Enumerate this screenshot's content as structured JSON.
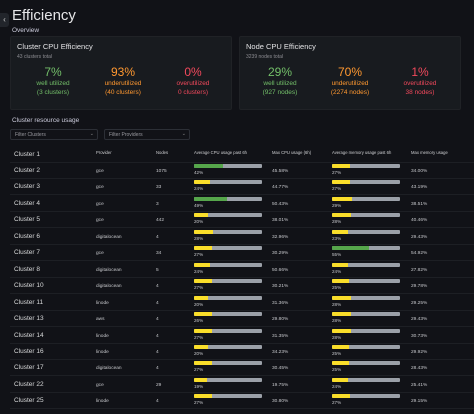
{
  "page": {
    "title": "Efficiency"
  },
  "overview_label": "Overview",
  "cpu_card": {
    "title": "Cluster CPU Efficiency",
    "subtitle": "43 clusters total",
    "stats": [
      {
        "value": "7%",
        "label": "well utilized",
        "detail": "(3 clusters)",
        "color": "#73bf69"
      },
      {
        "value": "93%",
        "label": "underutilized",
        "detail": "(40 clusters)",
        "color": "#ff9830"
      },
      {
        "value": "0%",
        "label": "overutilized",
        "detail": "0 clusters)",
        "color": "#f2495c"
      }
    ]
  },
  "node_card": {
    "title": "Node CPU Efficiency",
    "subtitle": "3239 nodes total",
    "stats": [
      {
        "value": "29%",
        "label": "well utilized",
        "detail": "(927 nodes)",
        "color": "#73bf69"
      },
      {
        "value": "70%",
        "label": "underutilized",
        "detail": "(2274 nodes)",
        "color": "#ff9830"
      },
      {
        "value": "1%",
        "label": "overutilized",
        "detail": "38 nodes)",
        "color": "#f2495c"
      }
    ]
  },
  "resource_label": "Cluster resource usage",
  "filters": {
    "clusters": "Filter Clusters",
    "providers": "Filter Providers"
  },
  "table": {
    "headers": [
      "Provider",
      "Nodes",
      "Average CPU usage past 6h",
      "Max CPU usage (6h)",
      "Average memory usage past 6h",
      "Max memory usage"
    ],
    "first_row": "Cluster 1",
    "rows": [
      {
        "name": "Cluster 2",
        "provider": "gce",
        "nodes": "1075",
        "cpu": 42,
        "cpu_label": "42%",
        "cpu_color": "#56a64b",
        "max_cpu": "45.58%",
        "mem": 27,
        "mem_label": "27%",
        "max_mem": "34.00%"
      },
      {
        "name": "Cluster 3",
        "provider": "gce",
        "nodes": "33",
        "cpu": 24,
        "cpu_label": "24%",
        "cpu_color": "#fade2a",
        "max_cpu": "44.77%",
        "mem": 27,
        "mem_label": "27%",
        "max_mem": "43.19%"
      },
      {
        "name": "Cluster 4",
        "provider": "gce",
        "nodes": "3",
        "cpu": 49,
        "cpu_label": "49%",
        "cpu_color": "#56a64b",
        "max_cpu": "50.43%",
        "mem": 29,
        "mem_label": "29%",
        "max_mem": "38.51%"
      },
      {
        "name": "Cluster 5",
        "provider": "gce",
        "nodes": "442",
        "cpu": 20,
        "cpu_label": "20%",
        "cpu_color": "#fade2a",
        "max_cpu": "38.01%",
        "mem": 28,
        "mem_label": "28%",
        "max_mem": "40.46%"
      },
      {
        "name": "Cluster 6",
        "provider": "digitalocean",
        "nodes": "4",
        "cpu": 28,
        "cpu_label": "28%",
        "cpu_color": "#fade2a",
        "max_cpu": "32.96%",
        "mem": 23,
        "mem_label": "23%",
        "max_mem": "29.43%"
      },
      {
        "name": "Cluster 7",
        "provider": "gce",
        "nodes": "34",
        "cpu": 27,
        "cpu_label": "27%",
        "cpu_color": "#fade2a",
        "max_cpu": "30.29%",
        "mem": 55,
        "mem_label": "55%",
        "max_mem": "54.92%"
      },
      {
        "name": "Cluster 8",
        "provider": "digitalocean",
        "nodes": "5",
        "cpu": 24,
        "cpu_label": "24%",
        "cpu_color": "#fade2a",
        "max_cpu": "50.66%",
        "mem": 24,
        "mem_label": "24%",
        "max_mem": "27.82%"
      },
      {
        "name": "Cluster 10",
        "provider": "digitalocean",
        "nodes": "4",
        "cpu": 27,
        "cpu_label": "27%",
        "cpu_color": "#fade2a",
        "max_cpu": "30.21%",
        "mem": 25,
        "mem_label": "25%",
        "max_mem": "29.78%"
      },
      {
        "name": "Cluster 11",
        "provider": "linode",
        "nodes": "4",
        "cpu": 20,
        "cpu_label": "20%",
        "cpu_color": "#fade2a",
        "max_cpu": "31.36%",
        "mem": 28,
        "mem_label": "28%",
        "max_mem": "29.25%"
      },
      {
        "name": "Cluster 13",
        "provider": "aws",
        "nodes": "4",
        "cpu": 26,
        "cpu_label": "26%",
        "cpu_color": "#fade2a",
        "max_cpu": "29.80%",
        "mem": 28,
        "mem_label": "28%",
        "max_mem": "29.43%"
      },
      {
        "name": "Cluster 14",
        "provider": "linode",
        "nodes": "4",
        "cpu": 27,
        "cpu_label": "27%",
        "cpu_color": "#fade2a",
        "max_cpu": "31.35%",
        "mem": 28,
        "mem_label": "28%",
        "max_mem": "30.73%"
      },
      {
        "name": "Cluster 16",
        "provider": "linode",
        "nodes": "4",
        "cpu": 20,
        "cpu_label": "20%",
        "cpu_color": "#fade2a",
        "max_cpu": "34.23%",
        "mem": 25,
        "mem_label": "25%",
        "max_mem": "29.92%"
      },
      {
        "name": "Cluster 17",
        "provider": "digitalocean",
        "nodes": "4",
        "cpu": 27,
        "cpu_label": "27%",
        "cpu_color": "#fade2a",
        "max_cpu": "30.45%",
        "mem": 25,
        "mem_label": "25%",
        "max_mem": "28.43%"
      },
      {
        "name": "Cluster 22",
        "provider": "gce",
        "nodes": "29",
        "cpu": 19,
        "cpu_label": "19%",
        "cpu_color": "#fade2a",
        "max_cpu": "19.75%",
        "mem": 24,
        "mem_label": "24%",
        "max_mem": "25.41%"
      },
      {
        "name": "Cluster 25",
        "provider": "linode",
        "nodes": "4",
        "cpu": 27,
        "cpu_label": "27%",
        "cpu_color": "#fade2a",
        "max_cpu": "30.80%",
        "mem": 27,
        "mem_label": "27%",
        "max_mem": "29.15%"
      }
    ]
  },
  "colors": {
    "gauge_track": "#9ba0a8",
    "mem_fill": "#fade2a",
    "mem_high": "#56a64b",
    "background": "#111217"
  }
}
